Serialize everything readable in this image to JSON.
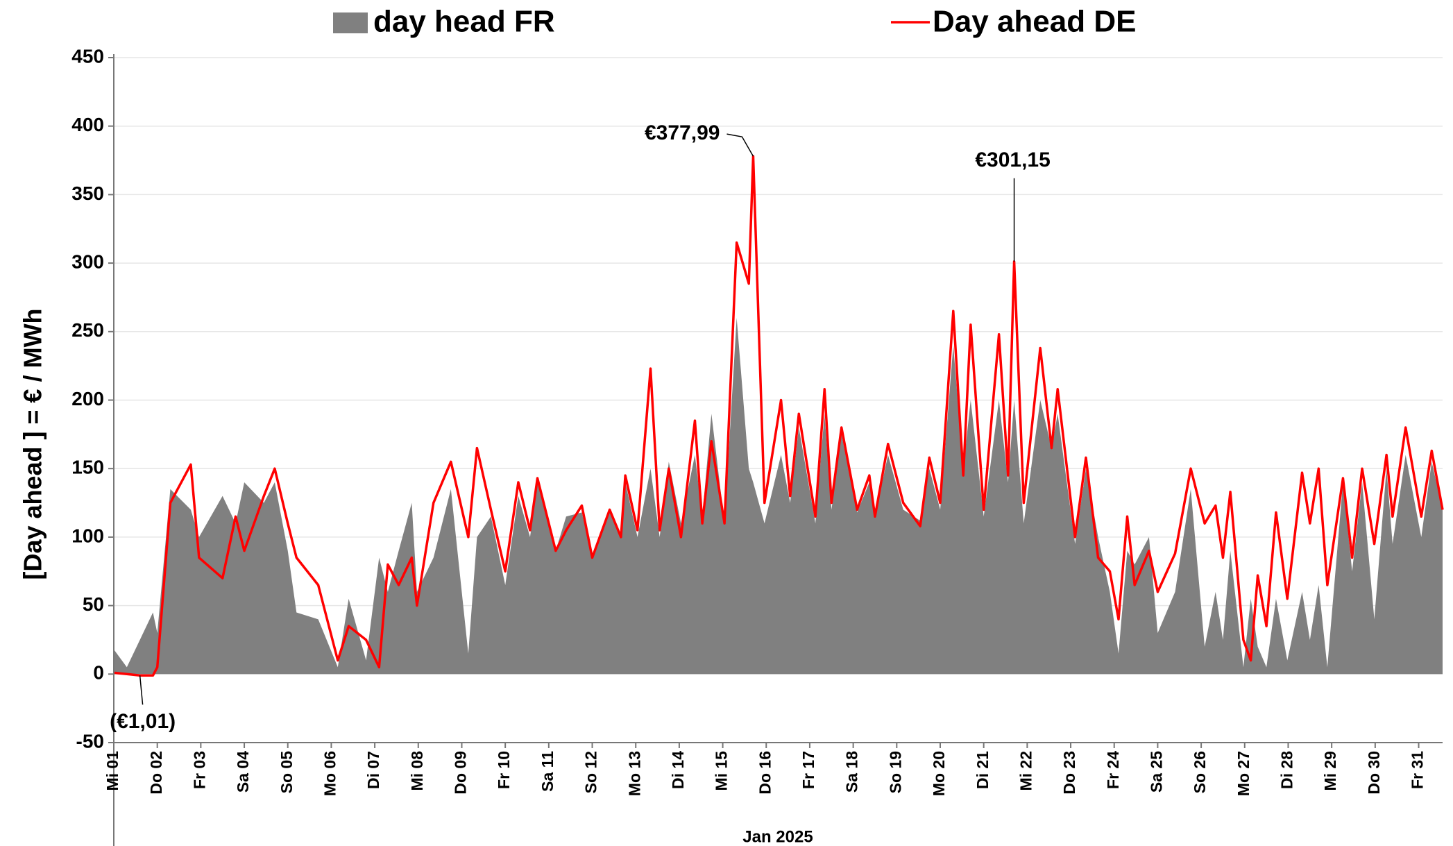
{
  "chart_data": {
    "type": "line",
    "ylabel": "[Day ahead ]  = € / MWh",
    "xlabel": "Jan 2025",
    "xlim": [
      0,
      30.55
    ],
    "ylim": [
      -50,
      450
    ],
    "yticks": [
      -50,
      0,
      50,
      100,
      150,
      200,
      250,
      300,
      350,
      400,
      450
    ],
    "grid": true,
    "legend": "top",
    "xticks": [
      {
        "value": 0,
        "label": "Mi 01"
      },
      {
        "value": 1,
        "label": "Do 02"
      },
      {
        "value": 2,
        "label": "Fr 03"
      },
      {
        "value": 3,
        "label": "Sa 04"
      },
      {
        "value": 4,
        "label": "So 05"
      },
      {
        "value": 5,
        "label": "Mo 06"
      },
      {
        "value": 6,
        "label": "Di 07"
      },
      {
        "value": 7,
        "label": "Mi 08"
      },
      {
        "value": 8,
        "label": "Do 09"
      },
      {
        "value": 9,
        "label": "Fr 10"
      },
      {
        "value": 10,
        "label": "Sa 11"
      },
      {
        "value": 11,
        "label": "So 12"
      },
      {
        "value": 12,
        "label": "Mo 13"
      },
      {
        "value": 13,
        "label": "Di 14"
      },
      {
        "value": 14,
        "label": "Mi 15"
      },
      {
        "value": 15,
        "label": "Do 16"
      },
      {
        "value": 16,
        "label": "Fr 17"
      },
      {
        "value": 17,
        "label": "Sa 18"
      },
      {
        "value": 18,
        "label": "So 19"
      },
      {
        "value": 19,
        "label": "Mo 20"
      },
      {
        "value": 20,
        "label": "Di 21"
      },
      {
        "value": 21,
        "label": "Mi 22"
      },
      {
        "value": 22,
        "label": "Do 23"
      },
      {
        "value": 23,
        "label": "Fr 24"
      },
      {
        "value": 24,
        "label": "Sa 25"
      },
      {
        "value": 25,
        "label": "So 26"
      },
      {
        "value": 26,
        "label": "Mo 27"
      },
      {
        "value": 27,
        "label": "Di 28"
      },
      {
        "value": 28,
        "label": "Mi 29"
      },
      {
        "value": 29,
        "label": "Do 30"
      },
      {
        "value": 30,
        "label": "Fr 31"
      }
    ],
    "x": [
      0,
      0.3,
      0.6,
      0.9,
      1.0,
      1.3,
      1.77,
      1.96,
      2.5,
      2.8,
      3.0,
      3.45,
      3.7,
      4.0,
      4.2,
      4.7,
      5.15,
      5.4,
      5.8,
      6.1,
      6.3,
      6.55,
      6.85,
      6.97,
      7.35,
      7.75,
      8.15,
      8.35,
      8.67,
      9.0,
      9.3,
      9.57,
      9.74,
      10.16,
      10.4,
      10.76,
      11.0,
      11.4,
      11.66,
      11.76,
      12.04,
      12.34,
      12.55,
      12.76,
      13.04,
      13.36,
      13.53,
      13.74,
      14.04,
      14.32,
      14.6,
      14.7,
      14.96,
      15.34,
      15.55,
      15.75,
      16.13,
      16.34,
      16.5,
      16.73,
      17.09,
      17.37,
      17.5,
      17.8,
      18.15,
      18.54,
      18.75,
      19.0,
      19.3,
      19.53,
      19.7,
      20.0,
      20.35,
      20.56,
      20.7,
      20.92,
      21.3,
      21.56,
      21.7,
      22.1,
      22.35,
      22.63,
      22.9,
      23.1,
      23.3,
      23.47,
      23.8,
      24.0,
      24.4,
      24.76,
      25.08,
      25.33,
      25.5,
      25.67,
      25.97,
      26.14,
      26.3,
      26.5,
      26.72,
      26.98,
      27.32,
      27.5,
      27.7,
      27.9,
      28.26,
      28.47,
      28.7,
      28.98,
      29.26,
      29.4,
      29.7,
      30.06,
      30.3,
      30.55
    ],
    "series": [
      {
        "name": "day head FR",
        "type": "area",
        "color": "#808080",
        "values": [
          18,
          5,
          25,
          45,
          30,
          135,
          120,
          100,
          130,
          110,
          140,
          125,
          140,
          90,
          45,
          40,
          5,
          55,
          10,
          85,
          60,
          90,
          125,
          60,
          85,
          135,
          15,
          100,
          115,
          65,
          130,
          100,
          140,
          90,
          115,
          118,
          85,
          118,
          100,
          140,
          100,
          150,
          100,
          155,
          110,
          160,
          115,
          190,
          110,
          260,
          150,
          140,
          110,
          160,
          125,
          180,
          110,
          190,
          120,
          175,
          118,
          140,
          115,
          160,
          120,
          112,
          150,
          120,
          240,
          150,
          200,
          115,
          200,
          140,
          200,
          110,
          200,
          165,
          190,
          95,
          150,
          100,
          60,
          15,
          90,
          80,
          100,
          30,
          60,
          135,
          20,
          60,
          25,
          90,
          5,
          55,
          20,
          5,
          55,
          10,
          60,
          25,
          65,
          5,
          140,
          75,
          140,
          40,
          150,
          95,
          160,
          100,
          155,
          120
        ]
      },
      {
        "name": "Day ahead DE",
        "type": "line",
        "color": "#ff0000",
        "values": [
          1,
          0,
          -1.01,
          -1,
          5,
          125,
          153,
          85,
          70,
          115,
          90,
          130,
          150,
          110,
          85,
          65,
          10,
          35,
          25,
          5,
          80,
          65,
          85,
          50,
          125,
          155,
          100,
          165,
          120,
          75,
          140,
          105,
          143,
          90,
          105,
          123,
          85,
          120,
          100,
          145,
          105,
          223,
          105,
          150,
          100,
          185,
          110,
          170,
          110,
          315,
          285,
          377.99,
          125,
          200,
          130,
          190,
          115,
          208,
          125,
          180,
          120,
          145,
          115,
          168,
          125,
          108,
          158,
          125,
          265,
          145,
          255,
          120,
          248,
          145,
          301.15,
          125,
          238,
          165,
          208,
          100,
          158,
          85,
          75,
          40,
          115,
          65,
          90,
          60,
          88,
          150,
          110,
          123,
          85,
          133,
          25,
          10,
          72,
          35,
          118,
          55,
          147,
          110,
          150,
          65,
          143,
          85,
          150,
          95,
          160,
          115,
          180,
          115,
          163,
          120
        ],
        "value_labels": [
          null,
          null,
          "(€1,01)",
          null,
          null,
          null,
          null,
          null,
          null,
          null,
          null,
          null,
          null,
          null,
          null,
          null,
          null,
          null,
          null,
          null,
          null,
          null,
          null,
          null,
          null,
          null,
          null,
          null,
          null,
          null,
          null,
          null,
          null,
          null,
          null,
          null,
          null,
          null,
          null,
          null,
          null,
          null,
          null,
          null,
          null,
          null,
          null,
          null,
          null,
          null,
          null,
          "€377,99",
          null,
          null,
          null,
          null,
          null,
          null,
          null,
          null,
          null,
          null,
          null,
          null,
          null,
          null,
          null,
          null,
          null,
          null,
          null,
          null,
          null,
          null,
          "€301,15",
          null,
          null,
          null,
          null,
          null,
          null,
          null,
          null,
          null,
          null,
          null,
          null,
          null,
          null,
          null,
          null,
          null,
          null,
          null,
          null,
          null,
          null,
          null,
          null,
          null,
          null,
          null,
          null,
          null,
          null,
          null,
          null,
          null,
          null,
          null,
          null,
          null,
          null,
          null
        ]
      }
    ]
  }
}
